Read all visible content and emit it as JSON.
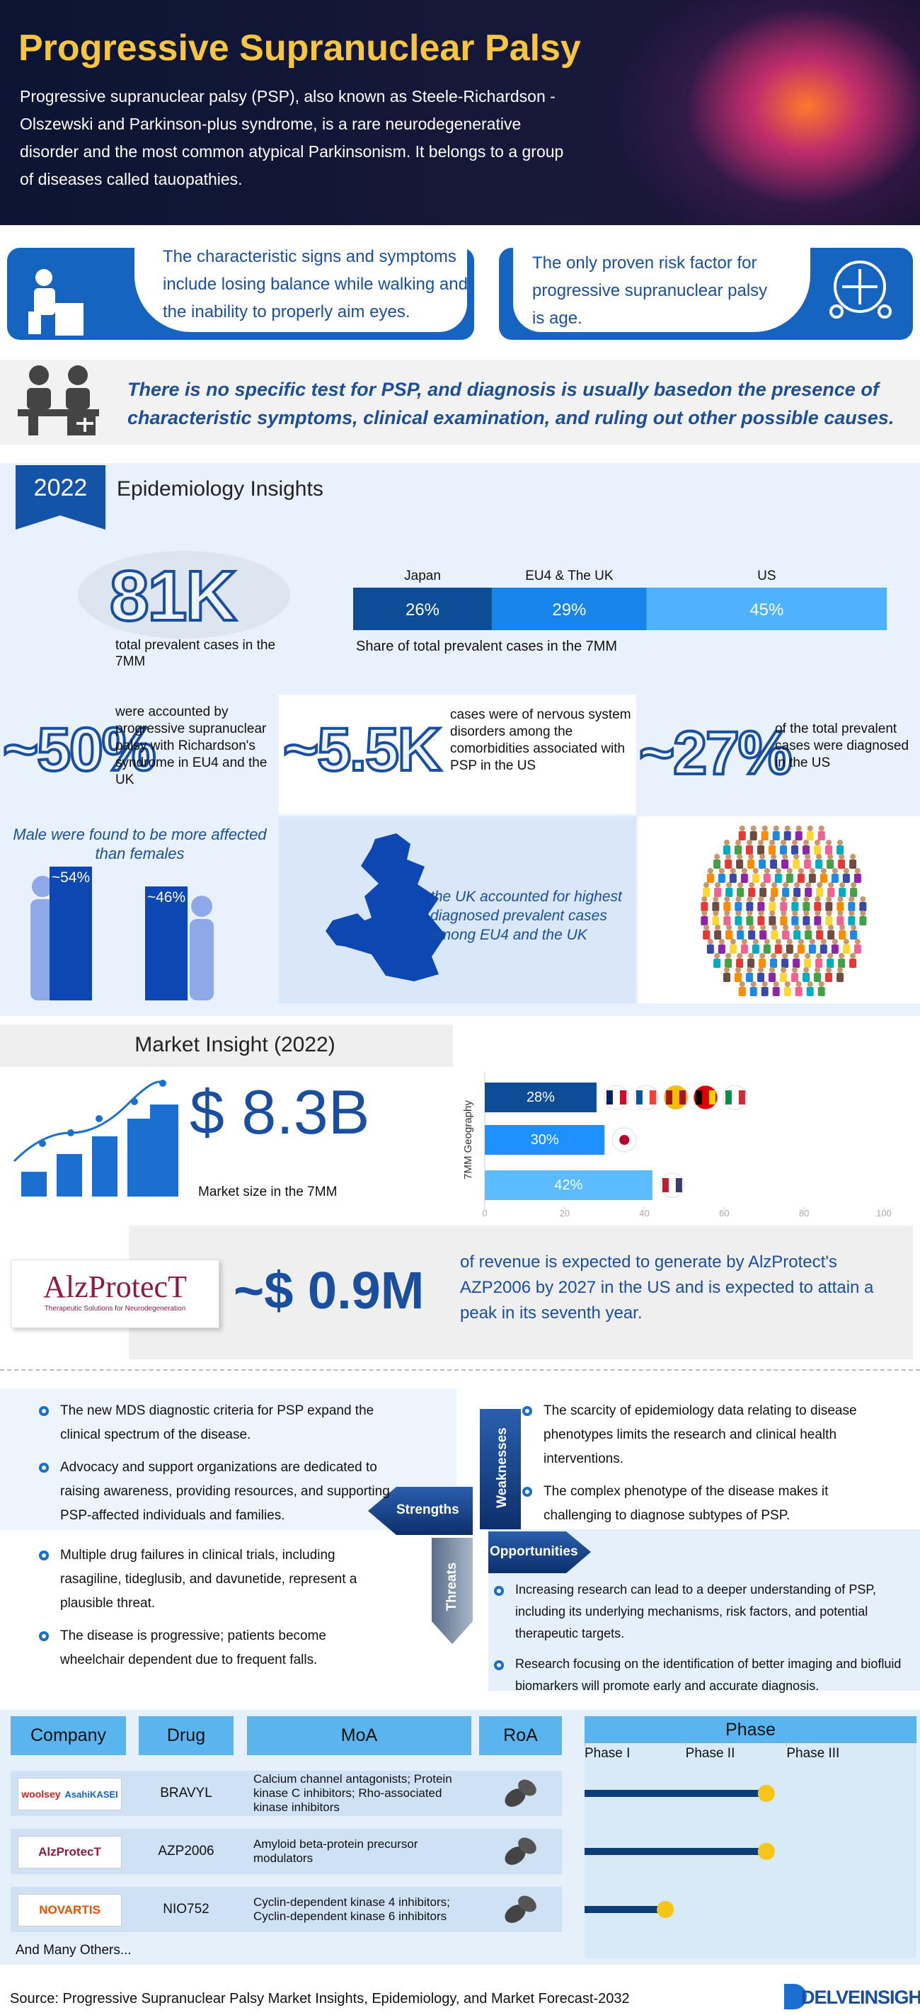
{
  "header": {
    "title": "Progressive Supranuclear Palsy",
    "description": "Progressive supranuclear palsy (PSP), also known as Steele-Richardson -Olszewski and Parkinson-plus syndrome, is a rare neurodegenerative disorder and the most common atypical Parkinsonism. It belongs to a group of diseases called tauopathies."
  },
  "symptoms": {
    "signs": "The characteristic signs and symptoms include losing balance while walking and the inability to properly aim eyes.",
    "risk": "The only proven risk factor for progressive supranuclear palsy is age."
  },
  "diagnosis": "There is no specific test for PSP, and diagnosis is usually basedon the presence of characteristic symptoms, clinical examination, and ruling out other possible causes.",
  "epidemiology": {
    "year": "2022",
    "title": "Epidemiology Insights",
    "prevalent": {
      "value": "81K",
      "label": "total prevalent cases in the 7MM"
    },
    "share_chart": {
      "type": "stacked-bar",
      "categories": [
        "Japan",
        "EU4 & The UK",
        "US"
      ],
      "values": [
        26,
        29,
        45
      ],
      "value_labels": [
        "26%",
        "29%",
        "45%"
      ],
      "colors": [
        "#0d4c96",
        "#1684ea",
        "#4fb2ff"
      ],
      "xlim": [
        0,
        100
      ],
      "caption": "Share of total prevalent cases in the 7MM"
    },
    "stats": [
      {
        "value": "~50%",
        "text": "were accounted by progressive supranuclear palsy with Richardson's syndrome in EU4 and the UK"
      },
      {
        "value": "~5.5K",
        "text": "cases were of nervous system disorders among the comorbidities associated with PSP in the US"
      },
      {
        "value": "~27%",
        "text": "of the total prevalent cases were diagnosed in the US"
      }
    ],
    "gender_chart": {
      "type": "bar",
      "title": "Male were found to be more affected than females",
      "values": [
        54,
        46
      ],
      "value_labels": [
        "~54%",
        "~46%"
      ],
      "ylim": [
        0,
        60
      ],
      "color": "#0d47b3"
    },
    "uk": "the UK accounted for highest diagnosed prevalent cases among EU4 and the UK"
  },
  "market": {
    "title": "Market Insight (2022)",
    "size": "$ 8.3B",
    "size_label": "Market size in the 7MM",
    "geo_chart": {
      "type": "bar",
      "orientation": "horizontal",
      "y_label": "7MM Geography",
      "values": [
        28,
        30,
        42
      ],
      "value_labels": [
        "28%",
        "30%",
        "42%"
      ],
      "colors": [
        "#0d4c96",
        "#1e90ff",
        "#5cbcff"
      ],
      "xlim": [
        0,
        100
      ],
      "xticks": [
        0,
        20,
        40,
        60,
        80,
        100
      ],
      "grid": false
    },
    "alzprotect": {
      "logo": "AlzProtecT",
      "tagline": "Therapeutic Solutions for Neurodegeneration",
      "value": "~$ 0.9M",
      "text": "of revenue is expected to generate by AlzProtect's AZP2006 by 2027 in the US and is expected to attain a peak in its seventh year."
    }
  },
  "swot": {
    "strengths": {
      "label": "Strengths",
      "items": [
        "The new MDS diagnostic criteria for PSP expand the clinical spectrum of the disease.",
        "Advocacy and support organizations are dedicated to raising awareness, providing resources, and supporting PSP-affected individuals and families."
      ]
    },
    "weaknesses": {
      "label": "Weaknesses",
      "items": [
        "The scarcity of epidemiology data relating to disease phenotypes limits the research and clinical health interventions.",
        "The complex phenotype of the disease makes it challenging to diagnose subtypes of PSP."
      ]
    },
    "threats": {
      "label": "Threats",
      "items": [
        "Multiple drug failures in clinical trials, including rasagiline, tideglusib, and davunetide, represent a plausible threat.",
        "The disease is progressive; patients become wheelchair dependent due to frequent falls."
      ]
    },
    "opportunities": {
      "label": "Opportunities",
      "items": [
        "Increasing research can lead to a deeper understanding of PSP, including its underlying mechanisms, risk factors, and potential therapeutic targets.",
        "Research focusing on the identification of better imaging and biofluid biomarkers will promote early and accurate diagnosis."
      ]
    }
  },
  "pipeline": {
    "headers": [
      "Company",
      "Drug",
      "MoA",
      "RoA",
      "Phase"
    ],
    "phase_chart": {
      "type": "progress",
      "xlim": [
        0,
        3
      ],
      "xticks": [
        {
          "value": 0,
          "label": "Phase I"
        },
        {
          "value": 1,
          "label": "Phase II"
        },
        {
          "value": 2,
          "label": "Phase III"
        }
      ],
      "values": [
        1.8,
        1.8,
        0.8
      ],
      "color": "#0d3c7a",
      "marker_color": "#f5c518"
    },
    "rows": [
      {
        "company": "woolsey",
        "partner": "AsahiKASEI",
        "drug": "BRAVYL",
        "moa": "Calcium channel antagonists; Protein kinase C inhibitors; Rho-associated kinase inhibitors"
      },
      {
        "company": "AlzProtecT",
        "drug": "AZP2006",
        "moa": "Amyloid beta-protein precursor modulators"
      },
      {
        "company": "NOVARTIS",
        "drug": "NIO752",
        "moa": "Cyclin-dependent kinase 4 inhibitors; Cyclin-dependent kinase 6 inhibitors"
      }
    ],
    "others": "And Many Others..."
  },
  "footer": {
    "source": "Source: Progressive Supranuclear Palsy Market Insights, Epidemiology, and Market Forecast-2032",
    "logo": "DELVEINSIGHT"
  }
}
